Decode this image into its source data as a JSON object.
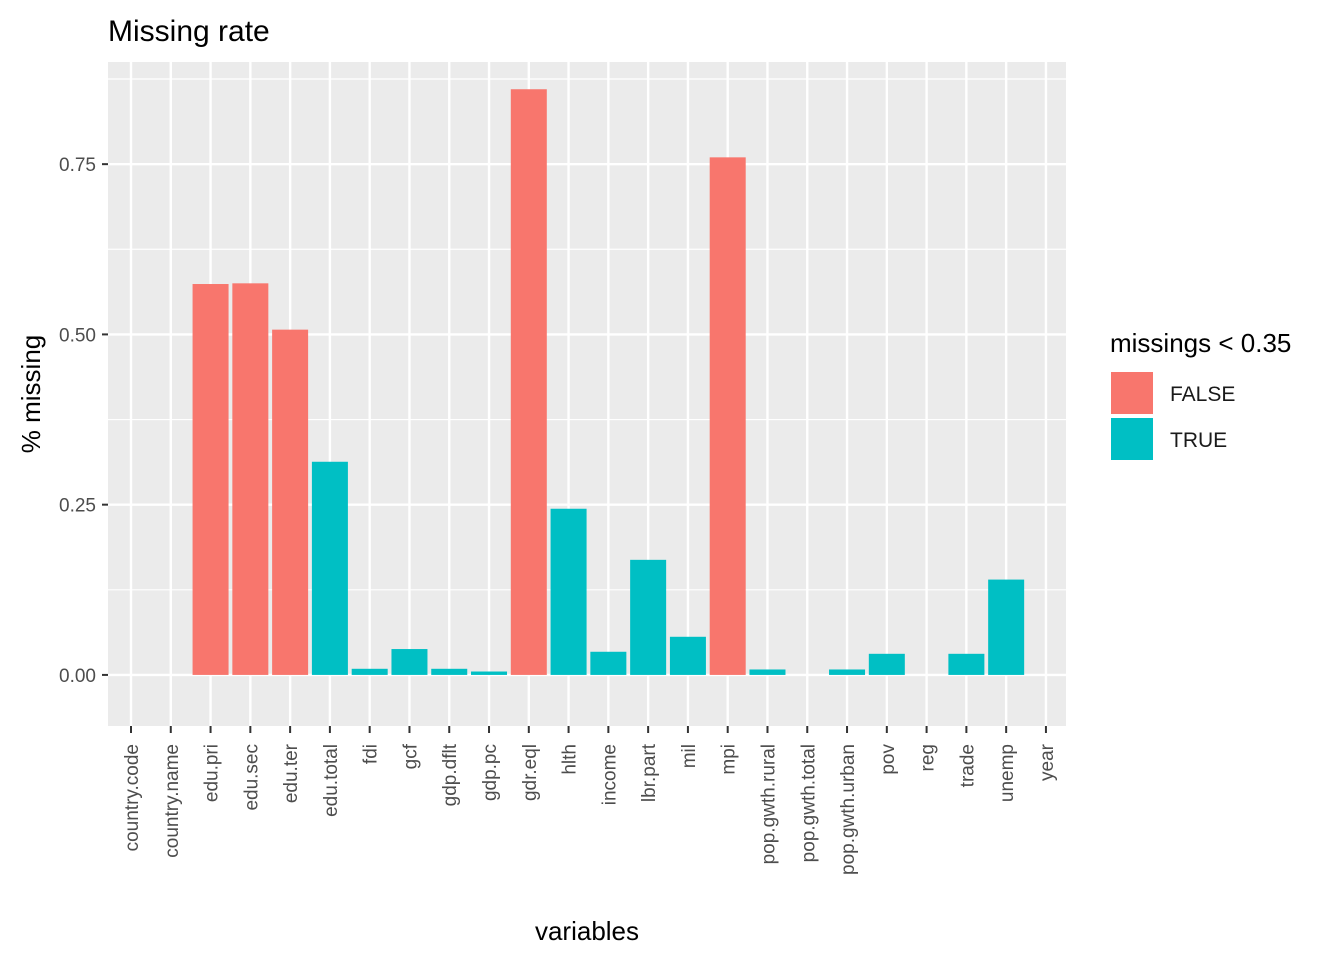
{
  "chart_data": {
    "type": "bar",
    "title": "Missing rate",
    "xlabel": "variables",
    "ylabel": "% missing",
    "ylim": [
      -0.075,
      0.9
    ],
    "yticks": [
      0.0,
      0.25,
      0.5,
      0.75
    ],
    "ytick_labels": [
      "0.00",
      "0.25",
      "0.50",
      "0.75"
    ],
    "grid": true,
    "legend": {
      "title": "missings < 0.35",
      "position": "right",
      "entries": [
        {
          "label": "FALSE",
          "color": "#F8766D"
        },
        {
          "label": "TRUE",
          "color": "#00BFC4"
        }
      ]
    },
    "categories": [
      "country.code",
      "country.name",
      "edu.pri",
      "edu.sec",
      "edu.ter",
      "edu.total",
      "fdi",
      "gcf",
      "gdp.dflt",
      "gdp.pc",
      "gdr.eql",
      "hlth",
      "income",
      "lbr.part",
      "mil",
      "mpi",
      "pop.gwth.rural",
      "pop.gwth.total",
      "pop.gwth.urban",
      "pov",
      "reg",
      "trade",
      "unemp",
      "year"
    ],
    "values": [
      0.0,
      0.0,
      0.574,
      0.575,
      0.507,
      0.313,
      0.009,
      0.038,
      0.009,
      0.005,
      0.86,
      0.244,
      0.034,
      0.169,
      0.056,
      0.76,
      0.008,
      0.0,
      0.008,
      0.031,
      0.0,
      0.031,
      0.14,
      0.0
    ],
    "fill_group": [
      "TRUE",
      "TRUE",
      "FALSE",
      "FALSE",
      "FALSE",
      "TRUE",
      "TRUE",
      "TRUE",
      "TRUE",
      "TRUE",
      "FALSE",
      "TRUE",
      "TRUE",
      "TRUE",
      "TRUE",
      "FALSE",
      "TRUE",
      "TRUE",
      "TRUE",
      "TRUE",
      "TRUE",
      "TRUE",
      "TRUE",
      "TRUE"
    ],
    "colors": {
      "panel_bg": "#EBEBEB",
      "grid": "#FFFFFF",
      "FALSE": "#F8766D",
      "TRUE": "#00BFC4"
    }
  }
}
